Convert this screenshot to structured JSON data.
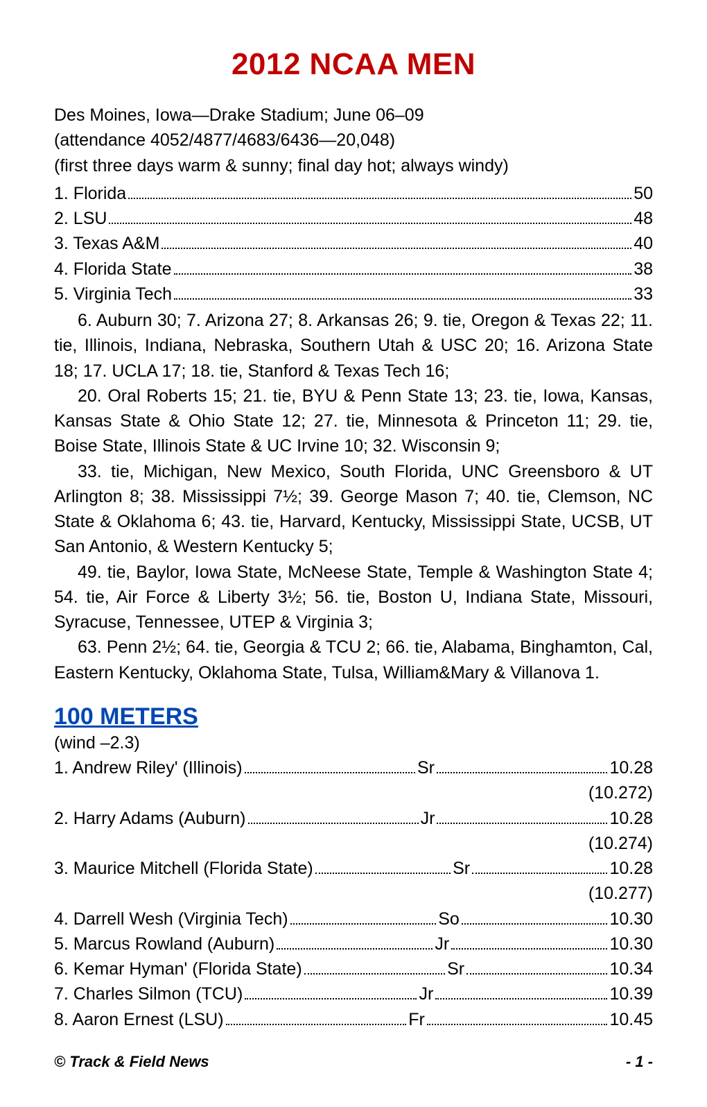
{
  "doc": {
    "title": "2012 NCAA MEN",
    "title_color": "#c00000",
    "meta": [
      "Des Moines, Iowa—Drake Stadium; June 06–09",
      "(attendance 4052/4877/4683/6436—20,048)",
      "(first three days warm & sunny; final day hot; always windy)"
    ],
    "standings": [
      {
        "place": "1.",
        "team": "Florida",
        "pts": "50"
      },
      {
        "place": "2.",
        "team": "LSU",
        "pts": "48"
      },
      {
        "place": "3.",
        "team": "Texas A&M",
        "pts": "40"
      },
      {
        "place": "4.",
        "team": "Florida State",
        "pts": "38"
      },
      {
        "place": "5.",
        "team": "Virginia Tech",
        "pts": "33"
      }
    ],
    "paragraphs": [
      "6. Auburn 30; 7. Arizona 27; 8. Arkansas 26; 9. tie, Oregon & Texas 22; 11. tie, Illinois, Indiana, Nebraska, Southern Utah & USC 20; 16. Arizona State 18; 17. UCLA 17; 18. tie, Stanford & Texas Tech 16;",
      "20. Oral Roberts 15; 21. tie, BYU & Penn State 13; 23. tie, Iowa, Kansas, Kansas State & Ohio State 12; 27. tie, Minnesota & Princeton 11; 29. tie, Boise State, Illinois State & UC Irvine 10; 32. Wisconsin 9;",
      "33. tie, Michigan, New Mexico, South Florida, UNC Greensboro & UT Arlington 8; 38. Mississippi 7½; 39. George Mason 7; 40. tie, Clemson, NC State & Oklahoma 6; 43. tie, Harvard, Kentucky, Mississippi State, UCSB, UT San Antonio, & Western Kentucky 5;",
      "49. tie, Baylor, Iowa State, McNeese State, Temple & Washington State 4; 54. tie, Air Force & Liberty 3½; 56. tie, Boston U, Indiana State, Missouri, Syracuse, Tennessee, UTEP & Virginia 3;",
      "63. Penn 2½; 64. tie, Georgia & TCU 2; 66. tie, Alabama, Binghamton, Cal, Eastern Kentucky, Oklahoma State, Tulsa, William&Mary & Villanova 1."
    ],
    "event": {
      "title": "100 METERS",
      "title_color": "#0047b3",
      "sub": "(wind –2.3)",
      "results": [
        {
          "place": "1.",
          "name": "Andrew Riley' (Illinois)",
          "cls": "Sr",
          "time": "10.28",
          "precise": "(10.272)"
        },
        {
          "place": "2.",
          "name": "Harry Adams (Auburn)",
          "cls": "Jr",
          "time": "10.28",
          "precise": "(10.274)"
        },
        {
          "place": "3.",
          "name": "Maurice Mitchell (Florida State)",
          "cls": "Sr",
          "time": "10.28",
          "precise": "(10.277)"
        },
        {
          "place": "4.",
          "name": "Darrell Wesh (Virginia Tech)",
          "cls": "So",
          "time": "10.30"
        },
        {
          "place": "5.",
          "name": "Marcus Rowland (Auburn)",
          "cls": "Jr",
          "time": "10.30"
        },
        {
          "place": "6.",
          "name": "Kemar Hyman' (Florida State)",
          "cls": "Sr",
          "time": "10.34"
        },
        {
          "place": "7.",
          "name": "Charles Silmon (TCU)",
          "cls": "Jr",
          "time": "10.39"
        },
        {
          "place": "8.",
          "name": "Aaron Ernest (LSU)",
          "cls": "Fr",
          "time": "10.45"
        }
      ]
    },
    "footer": {
      "left": "© Track & Field News",
      "right": "- 1 -"
    }
  }
}
